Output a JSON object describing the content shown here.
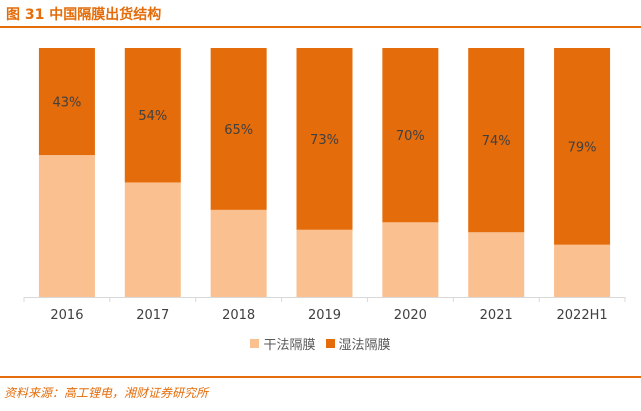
{
  "title": "图 31 中国隔膜出货结构",
  "source": "资料来源：高工锂电，湘财证券研究所",
  "colors": {
    "accent": "#E46C0A",
    "dry": "#FAC090",
    "wet": "#E46C0A",
    "axis": "#D9D9D9",
    "label_text": "#404040"
  },
  "legend": [
    {
      "label": "干法隔膜",
      "color": "#FAC090"
    },
    {
      "label": "湿法隔膜",
      "color": "#E46C0A"
    }
  ],
  "chart_data": {
    "type": "bar",
    "stacked": true,
    "categories": [
      "2016",
      "2017",
      "2018",
      "2019",
      "2020",
      "2021",
      "2022H1"
    ],
    "series": [
      {
        "name": "干法隔膜",
        "values": [
          57,
          46,
          35,
          27,
          30,
          26,
          21
        ]
      },
      {
        "name": "湿法隔膜",
        "values": [
          43,
          54,
          65,
          73,
          70,
          74,
          79
        ],
        "labels": [
          "43%",
          "54%",
          "65%",
          "73%",
          "70%",
          "74%",
          "79%"
        ]
      }
    ],
    "ylim": [
      0,
      100
    ],
    "grid": false,
    "legend_position": "bottom"
  }
}
